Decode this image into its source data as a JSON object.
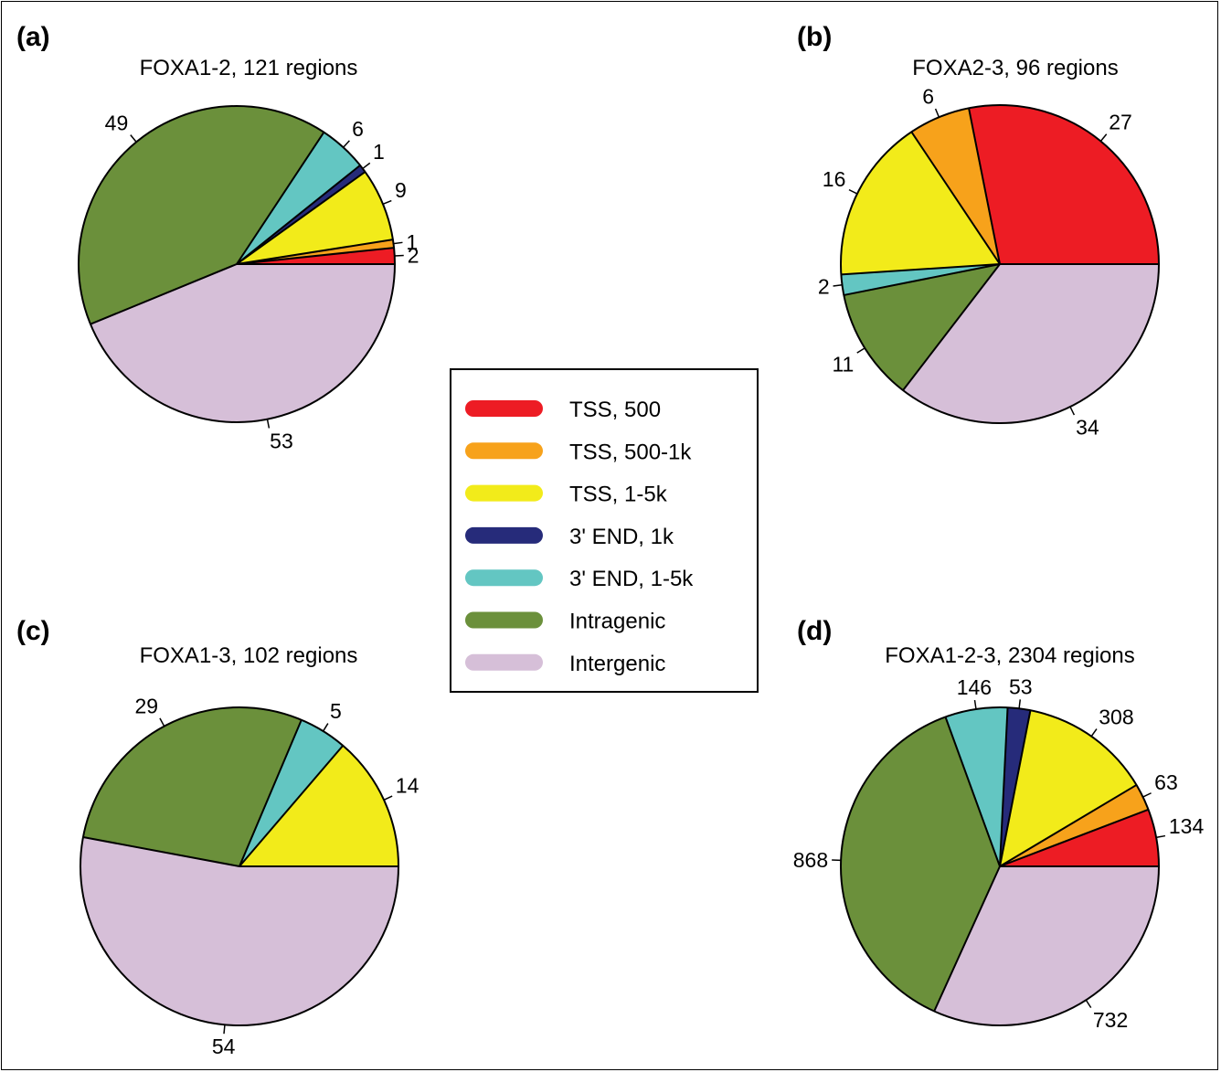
{
  "chart_data": [
    {
      "type": "pie",
      "panel": "(a)",
      "title": "FOXA1-2, 121 regions",
      "categories": [
        "TSS, 500",
        "TSS, 500-1k",
        "TSS, 1-5k",
        "3' END, 1k",
        "3' END, 1-5k",
        "Intragenic",
        "Intergenic"
      ],
      "values": [
        2,
        1,
        9,
        1,
        6,
        49,
        53
      ]
    },
    {
      "type": "pie",
      "panel": "(b)",
      "title": "FOXA2-3, 96 regions",
      "categories": [
        "TSS, 500",
        "TSS, 500-1k",
        "TSS, 1-5k",
        "3' END, 1k",
        "3' END, 1-5k",
        "Intragenic",
        "Intergenic"
      ],
      "values": [
        27,
        6,
        16,
        0,
        2,
        11,
        34
      ]
    },
    {
      "type": "pie",
      "panel": "(c)",
      "title": "FOXA1-3, 102 regions",
      "categories": [
        "TSS, 500",
        "TSS, 500-1k",
        "TSS, 1-5k",
        "3' END, 1k",
        "3' END, 1-5k",
        "Intragenic",
        "Intergenic"
      ],
      "values": [
        0,
        0,
        14,
        0,
        5,
        29,
        54
      ]
    },
    {
      "type": "pie",
      "panel": "(d)",
      "title": "FOXA1-2-3, 2304 regions",
      "categories": [
        "TSS, 500",
        "TSS, 500-1k",
        "TSS, 1-5k",
        "3' END, 1k",
        "3' END, 1-5k",
        "Intragenic",
        "Intergenic"
      ],
      "values": [
        134,
        63,
        308,
        53,
        146,
        868,
        732
      ]
    }
  ],
  "legend": {
    "items": [
      {
        "label": "TSS, 500",
        "color": "#ed1c24"
      },
      {
        "label": "TSS, 500-1k",
        "color": "#f7a21b"
      },
      {
        "label": "TSS, 1-5k",
        "color": "#f2eb1a"
      },
      {
        "label": "3' END, 1k",
        "color": "#262b7a"
      },
      {
        "label": "3' END, 1-5k",
        "color": "#63c6c2"
      },
      {
        "label": "Intragenic",
        "color": "#6b903b"
      },
      {
        "label": "Intergenic",
        "color": "#d6bfd8"
      }
    ]
  }
}
